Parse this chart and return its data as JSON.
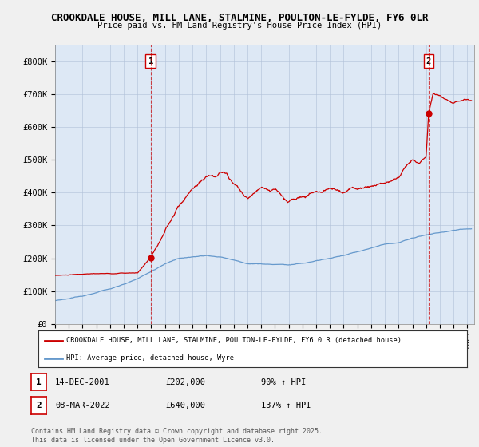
{
  "title1": "CROOKDALE HOUSE, MILL LANE, STALMINE, POULTON-LE-FYLDE, FY6 0LR",
  "title2": "Price paid vs. HM Land Registry's House Price Index (HPI)",
  "ylim": [
    0,
    850000
  ],
  "yticks": [
    0,
    100000,
    200000,
    300000,
    400000,
    500000,
    600000,
    700000,
    800000
  ],
  "ytick_labels": [
    "£0",
    "£100K",
    "£200K",
    "£300K",
    "£400K",
    "£500K",
    "£600K",
    "£700K",
    "£800K"
  ],
  "red_color": "#cc0000",
  "blue_color": "#6699cc",
  "plot_bg_color": "#dde8f5",
  "fig_bg_color": "#f0f0f0",
  "sale1_x": 2001.95,
  "sale1_y": 202000,
  "sale1_label": "1",
  "sale1_date": "14-DEC-2001",
  "sale1_price": "£202,000",
  "sale1_hpi": "90% ↑ HPI",
  "sale2_x": 2022.18,
  "sale2_y": 640000,
  "sale2_label": "2",
  "sale2_date": "08-MAR-2022",
  "sale2_price": "£640,000",
  "sale2_hpi": "137% ↑ HPI",
  "legend_line1": "CROOKDALE HOUSE, MILL LANE, STALMINE, POULTON-LE-FYLDE, FY6 0LR (detached house)",
  "legend_line2": "HPI: Average price, detached house, Wyre",
  "footer": "Contains HM Land Registry data © Crown copyright and database right 2025.\nThis data is licensed under the Open Government Licence v3.0.",
  "xmin": 1995.0,
  "xmax": 2025.5
}
